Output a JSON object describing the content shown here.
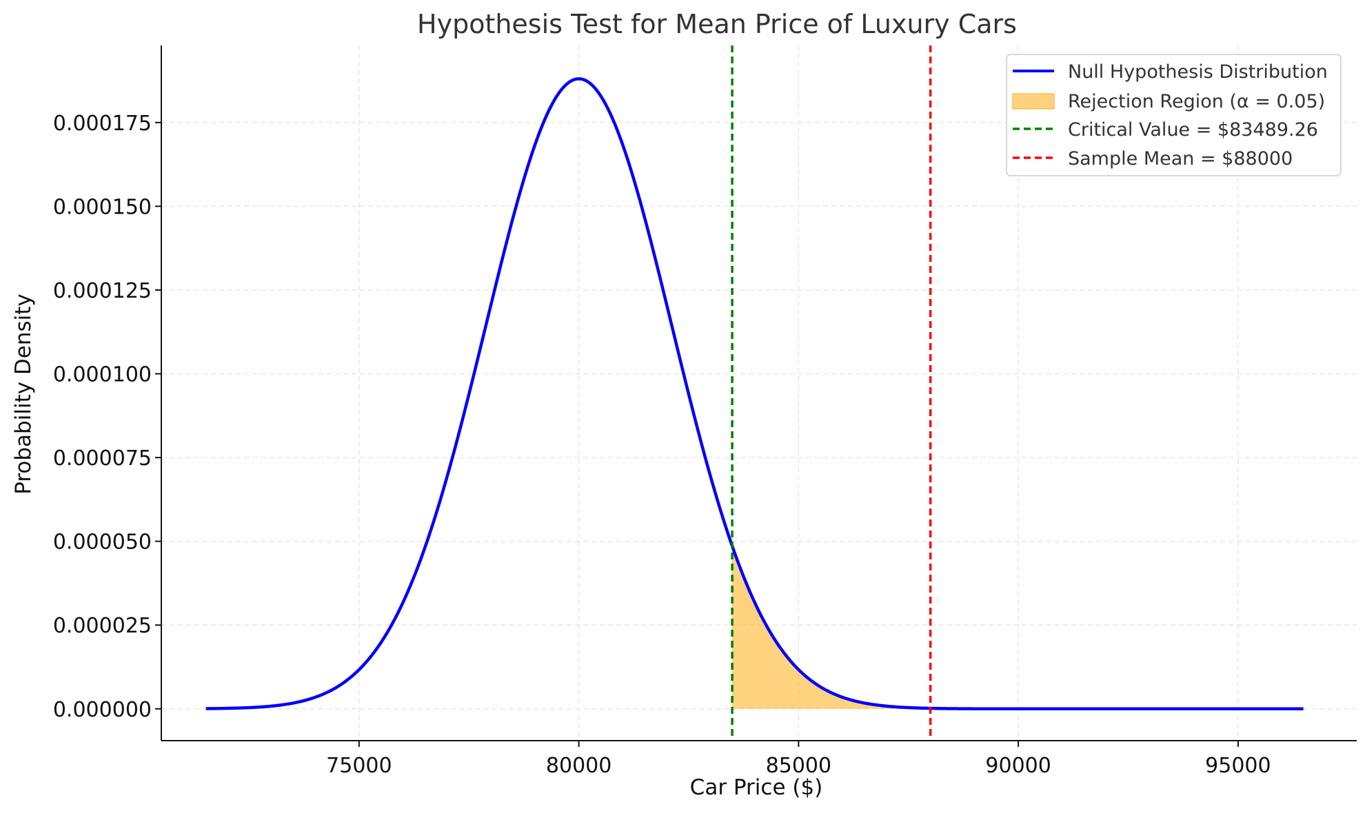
{
  "chart_data": {
    "type": "line",
    "title": "Hypothesis Test for Mean Price of Luxury Cars",
    "xlabel": "Car Price ($)",
    "ylabel": "Probability Density",
    "xlim": [
      70500,
      97700
    ],
    "ylim": [
      -9.5e-06,
      0.000198
    ],
    "x_ticks": [
      75000,
      80000,
      85000,
      90000,
      95000
    ],
    "x_tick_labels": [
      "75000",
      "80000",
      "85000",
      "90000",
      "95000"
    ],
    "y_ticks": [
      0,
      2.5e-05,
      5e-05,
      7.5e-05,
      0.0001,
      0.000125,
      0.00015,
      0.000175
    ],
    "y_tick_labels": [
      "0.000000",
      "0.000025",
      "0.000050",
      "0.000075",
      "0.000100",
      "0.000125",
      "0.000150",
      "0.000175"
    ],
    "grid": true,
    "legend_position": "top-right",
    "distribution": {
      "name": "Null Hypothesis Distribution",
      "mean": 80000,
      "std": 2121.32,
      "x_range": [
        71514.72,
        96485.28
      ],
      "peak_density": 0.000188,
      "color": "#0000ff"
    },
    "rejection_region": {
      "name": "Rejection Region (α = 0.05)",
      "x_start": 83489.26,
      "x_end": 88000,
      "color": "#ffa500"
    },
    "critical_value": {
      "name": "Critical Value = $83489.26",
      "x": 83489.26,
      "color": "#008000"
    },
    "sample_mean": {
      "name": "Sample Mean = $88000",
      "x": 88000,
      "color": "#ff0000"
    },
    "legend": [
      "Null Hypothesis Distribution",
      "Rejection Region (α = 0.05)",
      "Critical Value = $83489.26",
      "Sample Mean = $88000"
    ]
  }
}
